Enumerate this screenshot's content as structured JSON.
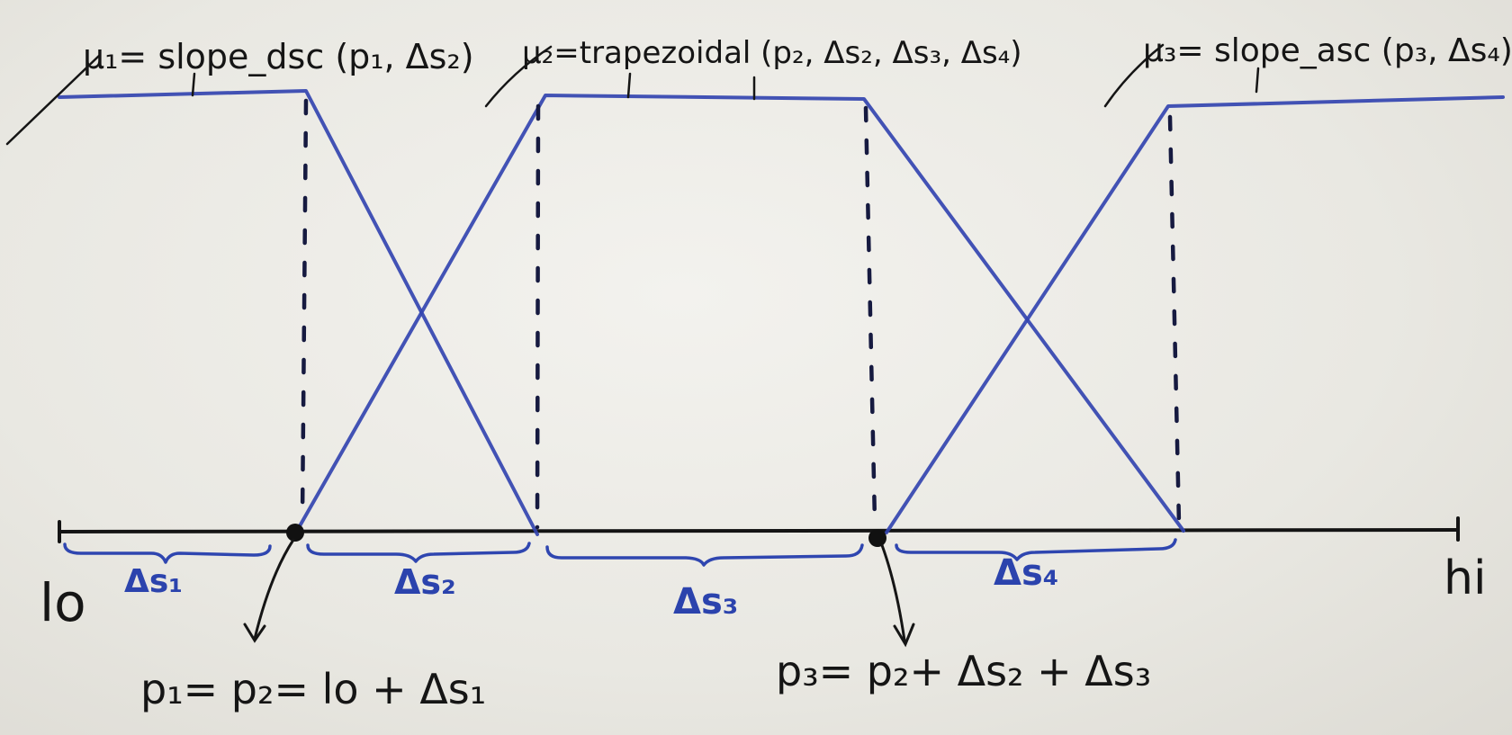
{
  "labels": {
    "mu1": "μ₁= slope_dsc (p₁, Δs₂)",
    "mu2": "μ₂=trapezoidal (p₂, Δs₂, Δs₃, Δs₄)",
    "mu3": "μ₃= slope_asc (p₃, Δs₄)",
    "lo": "lo",
    "hi": "hi",
    "ds1": "Δs₁",
    "ds2": "Δs₂",
    "ds3": "Δs₃",
    "ds4": "Δs₄",
    "eq_p1": "p₁= p₂= lo + Δs₁",
    "eq_p3": "p₃= p₂+ Δs₂ + Δs₃"
  },
  "colors": {
    "membership_lines": "#3344b0",
    "axis": "#141414",
    "dashed_guides": "#161a40",
    "braces": "#2f46b0",
    "paper": "#ecebe6"
  }
}
